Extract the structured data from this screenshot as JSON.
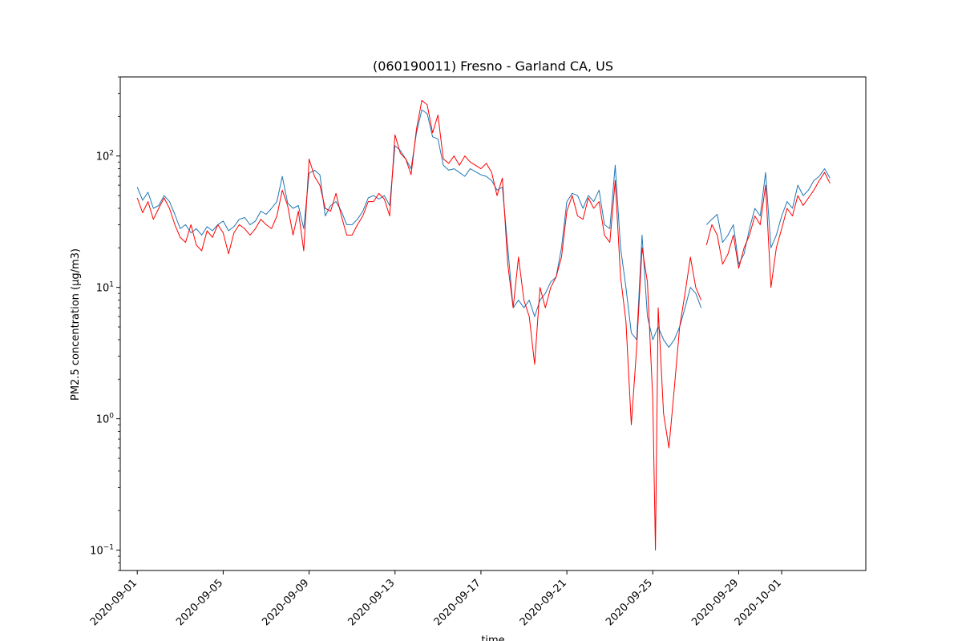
{
  "chart_data": {
    "type": "line",
    "title": "(060190011) Fresno - Garland CA, US",
    "xlabel": "time",
    "ylabel": "PM2.5 concentration (µg/m3)",
    "yscale": "log",
    "ylim": [
      0.07,
      400
    ],
    "xlim": [
      "2020-08-31T05:00",
      "2020-10-04T22:00"
    ],
    "grid": false,
    "legend": "none",
    "x_ticks": [
      "2020-09-01",
      "2020-09-05",
      "2020-09-09",
      "2020-09-13",
      "2020-09-17",
      "2020-09-21",
      "2020-09-25",
      "2020-09-29",
      "2020-10-01"
    ],
    "y_ticks": [
      {
        "value": 0.1,
        "base": "10",
        "exp": "−1"
      },
      {
        "value": 1,
        "base": "10",
        "exp": "0"
      },
      {
        "value": 10,
        "base": "10",
        "exp": "1"
      },
      {
        "value": 100,
        "base": "10",
        "exp": "2"
      }
    ],
    "series": [
      {
        "color": "#1f77b4",
        "points": [
          [
            "2020-09-01T00:00",
            58
          ],
          [
            "2020-09-01T06:00",
            46
          ],
          [
            "2020-09-01T12:00",
            53
          ],
          [
            "2020-09-01T18:00",
            40
          ],
          [
            "2020-09-02T00:00",
            42
          ],
          [
            "2020-09-02T06:00",
            50
          ],
          [
            "2020-09-02T12:00",
            45
          ],
          [
            "2020-09-02T18:00",
            36
          ],
          [
            "2020-09-03T00:00",
            28
          ],
          [
            "2020-09-03T06:00",
            30
          ],
          [
            "2020-09-03T12:00",
            26
          ],
          [
            "2020-09-03T18:00",
            28
          ],
          [
            "2020-09-04T00:00",
            25
          ],
          [
            "2020-09-04T06:00",
            29
          ],
          [
            "2020-09-04T12:00",
            27
          ],
          [
            "2020-09-04T18:00",
            30
          ],
          [
            "2020-09-05T00:00",
            32
          ],
          [
            "2020-09-05T06:00",
            27
          ],
          [
            "2020-09-05T12:00",
            29
          ],
          [
            "2020-09-05T18:00",
            33
          ],
          [
            "2020-09-06T00:00",
            34
          ],
          [
            "2020-09-06T06:00",
            30
          ],
          [
            "2020-09-06T12:00",
            32
          ],
          [
            "2020-09-06T18:00",
            38
          ],
          [
            "2020-09-07T00:00",
            36
          ],
          [
            "2020-09-07T06:00",
            40
          ],
          [
            "2020-09-07T12:00",
            45
          ],
          [
            "2020-09-07T18:00",
            70
          ],
          [
            "2020-09-08T00:00",
            44
          ],
          [
            "2020-09-08T06:00",
            40
          ],
          [
            "2020-09-08T12:00",
            42
          ],
          [
            "2020-09-08T18:00",
            28
          ],
          [
            "2020-09-09T00:00",
            74
          ],
          [
            "2020-09-09T06:00",
            78
          ],
          [
            "2020-09-09T12:00",
            72
          ],
          [
            "2020-09-09T18:00",
            35
          ],
          [
            "2020-09-10T00:00",
            42
          ],
          [
            "2020-09-10T06:00",
            45
          ],
          [
            "2020-09-10T12:00",
            38
          ],
          [
            "2020-09-10T18:00",
            30
          ],
          [
            "2020-09-11T00:00",
            30
          ],
          [
            "2020-09-11T06:00",
            33
          ],
          [
            "2020-09-11T12:00",
            38
          ],
          [
            "2020-09-11T18:00",
            48
          ],
          [
            "2020-09-12T00:00",
            50
          ],
          [
            "2020-09-12T06:00",
            47
          ],
          [
            "2020-09-12T12:00",
            50
          ],
          [
            "2020-09-12T18:00",
            42
          ],
          [
            "2020-09-13T00:00",
            120
          ],
          [
            "2020-09-13T06:00",
            110
          ],
          [
            "2020-09-13T12:00",
            95
          ],
          [
            "2020-09-13T18:00",
            80
          ],
          [
            "2020-09-14T00:00",
            150
          ],
          [
            "2020-09-14T06:00",
            225
          ],
          [
            "2020-09-14T12:00",
            210
          ],
          [
            "2020-09-14T18:00",
            140
          ],
          [
            "2020-09-15T00:00",
            135
          ],
          [
            "2020-09-15T06:00",
            85
          ],
          [
            "2020-09-15T12:00",
            78
          ],
          [
            "2020-09-15T18:00",
            80
          ],
          [
            "2020-09-16T00:00",
            75
          ],
          [
            "2020-09-16T06:00",
            70
          ],
          [
            "2020-09-16T12:00",
            80
          ],
          [
            "2020-09-16T18:00",
            76
          ],
          [
            "2020-09-17T00:00",
            72
          ],
          [
            "2020-09-17T06:00",
            70
          ],
          [
            "2020-09-17T12:00",
            65
          ],
          [
            "2020-09-17T18:00",
            55
          ],
          [
            "2020-09-18T00:00",
            58
          ],
          [
            "2020-09-18T06:00",
            20
          ],
          [
            "2020-09-18T12:00",
            7
          ],
          [
            "2020-09-18T18:00",
            8
          ],
          [
            "2020-09-19T00:00",
            7
          ],
          [
            "2020-09-19T06:00",
            8
          ],
          [
            "2020-09-19T12:00",
            6
          ],
          [
            "2020-09-19T18:00",
            8
          ],
          [
            "2020-09-20T00:00",
            9
          ],
          [
            "2020-09-20T06:00",
            11
          ],
          [
            "2020-09-20T12:00",
            12
          ],
          [
            "2020-09-20T18:00",
            20
          ],
          [
            "2020-09-21T00:00",
            45
          ],
          [
            "2020-09-21T06:00",
            52
          ],
          [
            "2020-09-21T12:00",
            50
          ],
          [
            "2020-09-21T18:00",
            40
          ],
          [
            "2020-09-22T00:00",
            50
          ],
          [
            "2020-09-22T06:00",
            45
          ],
          [
            "2020-09-22T12:00",
            55
          ],
          [
            "2020-09-22T18:00",
            30
          ],
          [
            "2020-09-23T00:00",
            28
          ],
          [
            "2020-09-23T06:00",
            85
          ],
          [
            "2020-09-23T12:00",
            20
          ],
          [
            "2020-09-23T18:00",
            10
          ],
          [
            "2020-09-24T00:00",
            4.5
          ],
          [
            "2020-09-24T06:00",
            4
          ],
          [
            "2020-09-24T12:00",
            25
          ],
          [
            "2020-09-24T18:00",
            6
          ],
          [
            "2020-09-25T00:00",
            4
          ],
          [
            "2020-09-25T06:00",
            5
          ],
          [
            "2020-09-25T12:00",
            4
          ],
          [
            "2020-09-25T18:00",
            3.5
          ],
          [
            "2020-09-26T00:00",
            4
          ],
          [
            "2020-09-26T06:00",
            5
          ],
          [
            "2020-09-26T12:00",
            7
          ],
          [
            "2020-09-26T18:00",
            10
          ],
          [
            "2020-09-27T00:00",
            9
          ],
          [
            "2020-09-27T06:00",
            7
          ]
        ]
      },
      {
        "color": "#1f77b4",
        "points": [
          [
            "2020-09-27T12:00",
            30
          ],
          [
            "2020-09-27T18:00",
            33
          ],
          [
            "2020-09-28T00:00",
            36
          ],
          [
            "2020-09-28T06:00",
            22
          ],
          [
            "2020-09-28T12:00",
            25
          ],
          [
            "2020-09-28T18:00",
            30
          ],
          [
            "2020-09-29T00:00",
            15
          ],
          [
            "2020-09-29T06:00",
            18
          ],
          [
            "2020-09-29T12:00",
            28
          ],
          [
            "2020-09-29T18:00",
            40
          ],
          [
            "2020-09-30T00:00",
            35
          ],
          [
            "2020-09-30T06:00",
            75
          ],
          [
            "2020-09-30T12:00",
            20
          ],
          [
            "2020-09-30T18:00",
            25
          ],
          [
            "2020-10-01T00:00",
            35
          ],
          [
            "2020-10-01T06:00",
            45
          ],
          [
            "2020-10-01T12:00",
            40
          ],
          [
            "2020-10-01T18:00",
            60
          ],
          [
            "2020-10-02T00:00",
            50
          ],
          [
            "2020-10-02T06:00",
            55
          ],
          [
            "2020-10-02T12:00",
            65
          ],
          [
            "2020-10-02T18:00",
            70
          ],
          [
            "2020-10-03T00:00",
            80
          ],
          [
            "2020-10-03T06:00",
            68
          ]
        ]
      },
      {
        "color": "#ff0000",
        "points": [
          [
            "2020-09-01T00:00",
            48
          ],
          [
            "2020-09-01T06:00",
            37
          ],
          [
            "2020-09-01T12:00",
            45
          ],
          [
            "2020-09-01T18:00",
            33
          ],
          [
            "2020-09-02T00:00",
            40
          ],
          [
            "2020-09-02T06:00",
            48
          ],
          [
            "2020-09-02T12:00",
            40
          ],
          [
            "2020-09-02T18:00",
            30
          ],
          [
            "2020-09-03T00:00",
            24
          ],
          [
            "2020-09-03T06:00",
            22
          ],
          [
            "2020-09-03T12:00",
            30
          ],
          [
            "2020-09-03T18:00",
            21
          ],
          [
            "2020-09-04T00:00",
            19
          ],
          [
            "2020-09-04T06:00",
            27
          ],
          [
            "2020-09-04T12:00",
            24
          ],
          [
            "2020-09-04T18:00",
            30
          ],
          [
            "2020-09-05T00:00",
            26
          ],
          [
            "2020-09-05T06:00",
            18
          ],
          [
            "2020-09-05T12:00",
            26
          ],
          [
            "2020-09-05T18:00",
            30
          ],
          [
            "2020-09-06T00:00",
            28
          ],
          [
            "2020-09-06T06:00",
            25
          ],
          [
            "2020-09-06T12:00",
            28
          ],
          [
            "2020-09-06T18:00",
            33
          ],
          [
            "2020-09-07T00:00",
            30
          ],
          [
            "2020-09-07T06:00",
            28
          ],
          [
            "2020-09-07T12:00",
            35
          ],
          [
            "2020-09-07T18:00",
            55
          ],
          [
            "2020-09-08T00:00",
            42
          ],
          [
            "2020-09-08T06:00",
            25
          ],
          [
            "2020-09-08T12:00",
            38
          ],
          [
            "2020-09-08T18:00",
            19
          ],
          [
            "2020-09-09T00:00",
            95
          ],
          [
            "2020-09-09T06:00",
            70
          ],
          [
            "2020-09-09T12:00",
            60
          ],
          [
            "2020-09-09T18:00",
            40
          ],
          [
            "2020-09-10T00:00",
            38
          ],
          [
            "2020-09-10T06:00",
            52
          ],
          [
            "2020-09-10T12:00",
            35
          ],
          [
            "2020-09-10T18:00",
            25
          ],
          [
            "2020-09-11T00:00",
            25
          ],
          [
            "2020-09-11T06:00",
            30
          ],
          [
            "2020-09-11T12:00",
            35
          ],
          [
            "2020-09-11T18:00",
            45
          ],
          [
            "2020-09-12T00:00",
            45
          ],
          [
            "2020-09-12T06:00",
            52
          ],
          [
            "2020-09-12T12:00",
            47
          ],
          [
            "2020-09-12T18:00",
            35
          ],
          [
            "2020-09-13T00:00",
            145
          ],
          [
            "2020-09-13T06:00",
            105
          ],
          [
            "2020-09-13T12:00",
            95
          ],
          [
            "2020-09-13T18:00",
            72
          ],
          [
            "2020-09-14T00:00",
            160
          ],
          [
            "2020-09-14T06:00",
            265
          ],
          [
            "2020-09-14T12:00",
            245
          ],
          [
            "2020-09-14T18:00",
            150
          ],
          [
            "2020-09-15T00:00",
            205
          ],
          [
            "2020-09-15T06:00",
            95
          ],
          [
            "2020-09-15T12:00",
            88
          ],
          [
            "2020-09-15T18:00",
            100
          ],
          [
            "2020-09-16T00:00",
            85
          ],
          [
            "2020-09-16T06:00",
            100
          ],
          [
            "2020-09-16T12:00",
            90
          ],
          [
            "2020-09-16T18:00",
            85
          ],
          [
            "2020-09-17T00:00",
            80
          ],
          [
            "2020-09-17T06:00",
            88
          ],
          [
            "2020-09-17T12:00",
            75
          ],
          [
            "2020-09-17T18:00",
            50
          ],
          [
            "2020-09-18T00:00",
            68
          ],
          [
            "2020-09-18T06:00",
            15
          ],
          [
            "2020-09-18T12:00",
            7
          ],
          [
            "2020-09-18T18:00",
            17
          ],
          [
            "2020-09-19T00:00",
            8
          ],
          [
            "2020-09-19T06:00",
            6
          ],
          [
            "2020-09-19T12:00",
            2.6
          ],
          [
            "2020-09-19T18:00",
            10
          ],
          [
            "2020-09-20T00:00",
            7
          ],
          [
            "2020-09-20T06:00",
            10
          ],
          [
            "2020-09-20T12:00",
            12
          ],
          [
            "2020-09-20T18:00",
            17
          ],
          [
            "2020-09-21T00:00",
            38
          ],
          [
            "2020-09-21T06:00",
            50
          ],
          [
            "2020-09-21T12:00",
            35
          ],
          [
            "2020-09-21T18:00",
            33
          ],
          [
            "2020-09-22T00:00",
            48
          ],
          [
            "2020-09-22T06:00",
            40
          ],
          [
            "2020-09-22T12:00",
            45
          ],
          [
            "2020-09-22T18:00",
            25
          ],
          [
            "2020-09-23T00:00",
            22
          ],
          [
            "2020-09-23T06:00",
            65
          ],
          [
            "2020-09-23T12:00",
            12
          ],
          [
            "2020-09-23T18:00",
            5.5
          ],
          [
            "2020-09-24T00:00",
            0.9
          ],
          [
            "2020-09-24T06:00",
            3.5
          ],
          [
            "2020-09-24T12:00",
            20
          ],
          [
            "2020-09-24T18:00",
            11
          ],
          [
            "2020-09-25T00:00",
            1.4
          ],
          [
            "2020-09-25T03:00",
            0.1
          ],
          [
            "2020-09-25T06:00",
            7
          ],
          [
            "2020-09-25T12:00",
            1.1
          ],
          [
            "2020-09-25T18:00",
            0.6
          ],
          [
            "2020-09-26T00:00",
            1.7
          ],
          [
            "2020-09-26T06:00",
            5
          ],
          [
            "2020-09-26T12:00",
            9
          ],
          [
            "2020-09-26T18:00",
            17
          ],
          [
            "2020-09-27T00:00",
            10
          ],
          [
            "2020-09-27T06:00",
            8
          ]
        ]
      },
      {
        "color": "#ff0000",
        "points": [
          [
            "2020-09-27T12:00",
            21
          ],
          [
            "2020-09-27T18:00",
            30
          ],
          [
            "2020-09-28T00:00",
            25
          ],
          [
            "2020-09-28T06:00",
            15
          ],
          [
            "2020-09-28T12:00",
            18
          ],
          [
            "2020-09-28T18:00",
            25
          ],
          [
            "2020-09-29T00:00",
            14
          ],
          [
            "2020-09-29T06:00",
            20
          ],
          [
            "2020-09-29T12:00",
            25
          ],
          [
            "2020-09-29T18:00",
            35
          ],
          [
            "2020-09-30T00:00",
            30
          ],
          [
            "2020-09-30T06:00",
            60
          ],
          [
            "2020-09-30T12:00",
            10
          ],
          [
            "2020-09-30T18:00",
            20
          ],
          [
            "2020-10-01T00:00",
            28
          ],
          [
            "2020-10-01T06:00",
            40
          ],
          [
            "2020-10-01T12:00",
            35
          ],
          [
            "2020-10-01T18:00",
            50
          ],
          [
            "2020-10-02T00:00",
            42
          ],
          [
            "2020-10-02T06:00",
            48
          ],
          [
            "2020-10-02T12:00",
            55
          ],
          [
            "2020-10-02T18:00",
            65
          ],
          [
            "2020-10-03T00:00",
            75
          ],
          [
            "2020-10-03T06:00",
            62
          ]
        ]
      }
    ]
  }
}
